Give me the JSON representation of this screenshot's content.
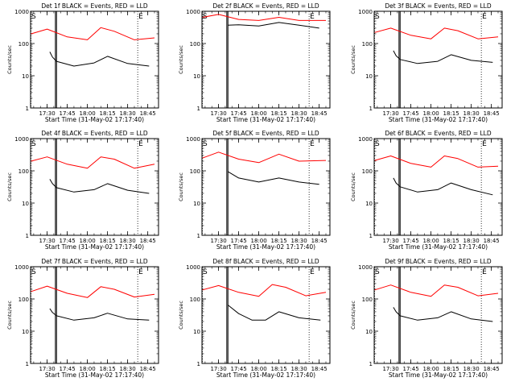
{
  "chart_data": [
    {
      "type": "line",
      "title": "Det 1f BLACK = Events, RED = LLD",
      "xlabel": "Start Time (31-May-02 17:17:40)",
      "ylabel": "Counts/sec",
      "yscale": "log",
      "ylim": [
        1,
        1000
      ],
      "xlim": [
        "17:17:40",
        "18:53:00"
      ],
      "x_ticks": [
        "17:30",
        "17:45",
        "18:00",
        "18:15",
        "18:30",
        "18:45"
      ],
      "y_ticks": [
        "1",
        "10",
        "100",
        "1000"
      ],
      "markers": {
        "s_label": "S",
        "e_label": "E",
        "s_time": "17:17:40",
        "e_time": "18:37:30"
      },
      "vertical_lines_solid": [
        "17:36:10",
        "17:37:00"
      ],
      "series": [
        {
          "color": "#ff0000",
          "x": [
            "17:18",
            "17:30",
            "17:45",
            "18:00",
            "18:10",
            "18:20",
            "18:35",
            "18:50"
          ],
          "y": [
            200,
            280,
            160,
            130,
            310,
            240,
            130,
            150
          ]
        },
        {
          "color": "#000000",
          "x": [
            "17:32",
            "17:34",
            "17:37",
            "17:50",
            "18:05",
            "18:15",
            "18:30",
            "18:46"
          ],
          "y": [
            55,
            38,
            28,
            20,
            25,
            40,
            24,
            20
          ]
        }
      ]
    },
    {
      "type": "line",
      "title": "Det 2f BLACK = Events, RED = LLD",
      "xlabel": "Start Time (31-May-02 17:17:40)",
      "ylabel": "Counts/sec",
      "yscale": "log",
      "ylim": [
        1,
        1000
      ],
      "xlim": [
        "17:17:40",
        "18:53:00"
      ],
      "x_ticks": [
        "17:30",
        "17:45",
        "18:00",
        "18:15",
        "18:30",
        "18:45"
      ],
      "y_ticks": [
        "1",
        "10",
        "100",
        "1000"
      ],
      "markers": {
        "s_label": "S",
        "e_label": "E",
        "s_time": "17:17:40",
        "e_time": "18:37:30"
      },
      "vertical_lines_solid": [
        "17:36:10",
        "17:37:00"
      ],
      "series": [
        {
          "color": "#ff0000",
          "x": [
            "17:18",
            "17:30",
            "17:45",
            "18:00",
            "18:15",
            "18:30",
            "18:50"
          ],
          "y": [
            650,
            800,
            560,
            520,
            650,
            520,
            520
          ]
        },
        {
          "color": "#000000",
          "x": [
            "17:37",
            "17:45",
            "18:00",
            "18:15",
            "18:30",
            "18:45"
          ],
          "y": [
            370,
            380,
            350,
            450,
            370,
            300
          ]
        }
      ]
    },
    {
      "type": "line",
      "title": "Det 3f BLACK = Events, RED = LLD",
      "xlabel": "Start Time (31-May-02 17:17:40)",
      "ylabel": "Counts/sec",
      "yscale": "log",
      "ylim": [
        1,
        1000
      ],
      "xlim": [
        "17:17:40",
        "18:53:00"
      ],
      "x_ticks": [
        "17:30",
        "17:45",
        "18:00",
        "18:15",
        "18:30",
        "18:45"
      ],
      "y_ticks": [
        "1",
        "10",
        "100",
        "1000"
      ],
      "markers": {
        "s_label": "S",
        "e_label": "E",
        "s_time": "17:17:40",
        "e_time": "18:37:30"
      },
      "vertical_lines_solid": [
        "17:36:10",
        "17:37:00"
      ],
      "series": [
        {
          "color": "#ff0000",
          "x": [
            "17:18",
            "17:30",
            "17:45",
            "18:00",
            "18:10",
            "18:20",
            "18:35",
            "18:50"
          ],
          "y": [
            220,
            300,
            180,
            140,
            300,
            250,
            140,
            160
          ]
        },
        {
          "color": "#000000",
          "x": [
            "17:32",
            "17:34",
            "17:37",
            "17:50",
            "18:05",
            "18:15",
            "18:30",
            "18:46"
          ],
          "y": [
            60,
            42,
            32,
            24,
            28,
            45,
            30,
            26
          ]
        }
      ]
    },
    {
      "type": "line",
      "title": "Det 4f BLACK = Events, RED = LLD",
      "xlabel": "Start Time (31-May-02 17:17:40)",
      "ylabel": "Counts/sec",
      "yscale": "log",
      "ylim": [
        1,
        1000
      ],
      "xlim": [
        "17:17:40",
        "18:53:00"
      ],
      "x_ticks": [
        "17:30",
        "17:45",
        "18:00",
        "18:15",
        "18:30",
        "18:45"
      ],
      "y_ticks": [
        "1",
        "10",
        "100",
        "1000"
      ],
      "markers": {
        "s_label": "S",
        "e_label": "E",
        "s_time": "17:17:40",
        "e_time": "18:37:30"
      },
      "vertical_lines_solid": [
        "17:36:10",
        "17:37:00"
      ],
      "series": [
        {
          "color": "#ff0000",
          "x": [
            "17:18",
            "17:30",
            "17:45",
            "18:00",
            "18:10",
            "18:20",
            "18:35",
            "18:50"
          ],
          "y": [
            200,
            270,
            160,
            120,
            270,
            230,
            120,
            160
          ]
        },
        {
          "color": "#000000",
          "x": [
            "17:32",
            "17:34",
            "17:37",
            "17:50",
            "18:05",
            "18:15",
            "18:30",
            "18:46"
          ],
          "y": [
            55,
            40,
            30,
            22,
            26,
            40,
            25,
            20
          ]
        }
      ]
    },
    {
      "type": "line",
      "title": "Det 5f BLACK = Events, RED = LLD",
      "xlabel": "Start Time (31-May-02 17:17:40)",
      "ylabel": "Counts/sec",
      "yscale": "log",
      "ylim": [
        1,
        1000
      ],
      "xlim": [
        "17:17:40",
        "18:53:00"
      ],
      "x_ticks": [
        "17:30",
        "17:45",
        "18:00",
        "18:15",
        "18:30",
        "18:45"
      ],
      "y_ticks": [
        "1",
        "10",
        "100",
        "1000"
      ],
      "markers": {
        "s_label": "S",
        "e_label": "E",
        "s_time": "17:17:40",
        "e_time": "18:37:30"
      },
      "vertical_lines_solid": [
        "17:36:10",
        "17:37:00"
      ],
      "series": [
        {
          "color": "#ff0000",
          "x": [
            "17:18",
            "17:30",
            "17:45",
            "18:00",
            "18:15",
            "18:30",
            "18:50"
          ],
          "y": [
            250,
            380,
            230,
            180,
            330,
            200,
            210
          ]
        },
        {
          "color": "#000000",
          "x": [
            "17:37",
            "17:45",
            "18:00",
            "18:15",
            "18:30",
            "18:45"
          ],
          "y": [
            95,
            60,
            45,
            60,
            45,
            38
          ]
        }
      ]
    },
    {
      "type": "line",
      "title": "Det 6f BLACK = Events, RED = LLD",
      "xlabel": "Start Time (31-May-02 17:17:40)",
      "ylabel": "Counts/sec",
      "yscale": "log",
      "ylim": [
        1,
        1000
      ],
      "xlim": [
        "17:17:40",
        "18:53:00"
      ],
      "x_ticks": [
        "17:30",
        "17:45",
        "18:00",
        "18:15",
        "18:30",
        "18:45"
      ],
      "y_ticks": [
        "1",
        "10",
        "100",
        "1000"
      ],
      "markers": {
        "s_label": "S",
        "e_label": "E",
        "s_time": "17:17:40",
        "e_time": "18:37:30"
      },
      "vertical_lines_solid": [
        "17:36:10",
        "17:37:00"
      ],
      "series": [
        {
          "color": "#ff0000",
          "x": [
            "17:18",
            "17:30",
            "17:45",
            "18:00",
            "18:10",
            "18:20",
            "18:35",
            "18:50"
          ],
          "y": [
            210,
            290,
            170,
            130,
            290,
            240,
            130,
            140
          ]
        },
        {
          "color": "#000000",
          "x": [
            "17:32",
            "17:34",
            "17:37",
            "17:50",
            "18:05",
            "18:15",
            "18:30",
            "18:46"
          ],
          "y": [
            60,
            42,
            32,
            22,
            26,
            42,
            26,
            18
          ]
        }
      ]
    },
    {
      "type": "line",
      "title": "Det 7f BLACK = Events, RED = LLD",
      "xlabel": "Start Time (31-May-02 17:17:40)",
      "ylabel": "Counts/sec",
      "yscale": "log",
      "ylim": [
        1,
        1000
      ],
      "xlim": [
        "17:17:40",
        "18:53:00"
      ],
      "x_ticks": [
        "17:30",
        "17:45",
        "18:00",
        "18:15",
        "18:30",
        "18:45"
      ],
      "y_ticks": [
        "1",
        "10",
        "100",
        "1000"
      ],
      "markers": {
        "s_label": "S",
        "e_label": "E",
        "s_time": "17:17:40",
        "e_time": "18:37:30"
      },
      "vertical_lines_solid": [
        "17:36:10",
        "17:37:00"
      ],
      "series": [
        {
          "color": "#ff0000",
          "x": [
            "17:18",
            "17:30",
            "17:45",
            "18:00",
            "18:10",
            "18:20",
            "18:35",
            "18:50"
          ],
          "y": [
            170,
            250,
            150,
            110,
            240,
            200,
            115,
            140
          ]
        },
        {
          "color": "#000000",
          "x": [
            "17:32",
            "17:34",
            "17:37",
            "17:50",
            "18:05",
            "18:15",
            "18:30",
            "18:46"
          ],
          "y": [
            50,
            38,
            30,
            22,
            26,
            36,
            24,
            22
          ]
        }
      ]
    },
    {
      "type": "line",
      "title": "Det 8f BLACK = Events, RED = LLD",
      "xlabel": "Start Time (31-May-02 17:17:40)",
      "ylabel": "Counts/sec",
      "yscale": "log",
      "ylim": [
        1,
        1000
      ],
      "xlim": [
        "17:17:40",
        "18:53:00"
      ],
      "x_ticks": [
        "17:30",
        "17:45",
        "18:00",
        "18:15",
        "18:30",
        "18:45"
      ],
      "y_ticks": [
        "1",
        "10",
        "100",
        "1000"
      ],
      "markers": {
        "s_label": "S",
        "e_label": "E",
        "s_time": "17:17:40",
        "e_time": "18:37:30"
      },
      "vertical_lines_solid": [
        "17:36:10",
        "17:37:00"
      ],
      "series": [
        {
          "color": "#ff0000",
          "x": [
            "17:18",
            "17:30",
            "17:45",
            "18:00",
            "18:10",
            "18:20",
            "18:35",
            "18:50"
          ],
          "y": [
            190,
            260,
            160,
            120,
            280,
            230,
            125,
            160
          ]
        },
        {
          "color": "#000000",
          "x": [
            "17:37",
            "17:45",
            "17:55",
            "18:05",
            "18:15",
            "18:30",
            "18:46"
          ],
          "y": [
            65,
            35,
            22,
            22,
            40,
            26,
            22
          ]
        }
      ]
    },
    {
      "type": "line",
      "title": "Det 9f BLACK = Events, RED = LLD",
      "xlabel": "Start Time (31-May-02 17:17:40)",
      "ylabel": "Counts/sec",
      "yscale": "log",
      "ylim": [
        1,
        1000
      ],
      "xlim": [
        "17:17:40",
        "18:53:00"
      ],
      "x_ticks": [
        "17:30",
        "17:45",
        "18:00",
        "18:15",
        "18:30",
        "18:45"
      ],
      "y_ticks": [
        "1",
        "10",
        "100",
        "1000"
      ],
      "markers": {
        "s_label": "S",
        "e_label": "E",
        "s_time": "17:17:40",
        "e_time": "18:37:30"
      },
      "vertical_lines_solid": [
        "17:36:10",
        "17:37:00"
      ],
      "series": [
        {
          "color": "#ff0000",
          "x": [
            "17:18",
            "17:30",
            "17:45",
            "18:00",
            "18:10",
            "18:20",
            "18:35",
            "18:50"
          ],
          "y": [
            190,
            270,
            160,
            120,
            270,
            230,
            125,
            150
          ]
        },
        {
          "color": "#000000",
          "x": [
            "17:32",
            "17:34",
            "17:37",
            "17:50",
            "18:05",
            "18:15",
            "18:30",
            "18:46"
          ],
          "y": [
            55,
            40,
            30,
            22,
            26,
            40,
            24,
            20
          ]
        }
      ]
    }
  ]
}
